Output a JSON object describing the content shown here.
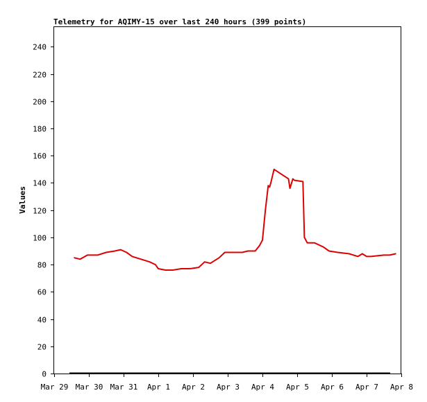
{
  "chart_data": {
    "type": "line",
    "title": "Telemetry for AQIMY-15 over last 240 hours (399 points)",
    "xlabel": "",
    "ylabel": "Values",
    "x_tick_labels": [
      "Mar 29",
      "Mar 30",
      "Mar 31",
      "Apr 1",
      "Apr 2",
      "Apr 3",
      "Apr 4",
      "Apr 5",
      "Apr 6",
      "Apr 7",
      "Apr 8"
    ],
    "xlim": [
      "Mar 29",
      "Apr 8"
    ],
    "ylim": [
      0,
      255
    ],
    "y_ticks": [
      0,
      20,
      40,
      60,
      80,
      100,
      120,
      140,
      160,
      180,
      200,
      220,
      240
    ],
    "grid": false,
    "line_color": "#dd0000",
    "baseline_color": "#000000",
    "series": [
      {
        "x": [
          "Mar 29 14:00",
          "Mar 29 18:00",
          "Mar 29 23:00",
          "Mar 30 06:00",
          "Mar 30 12:00",
          "Mar 30 18:00",
          "Mar 30 22:00",
          "Mar 31 02:00",
          "Mar 31 06:00",
          "Mar 31 12:00",
          "Mar 31 18:00",
          "Mar 31 22:00",
          "Apr 1 00:00",
          "Apr 1 05:00",
          "Apr 1 10:00",
          "Apr 1 16:00",
          "Apr 1 22:00",
          "Apr 2 04:00",
          "Apr 2 08:00",
          "Apr 2 12:00",
          "Apr 2 18:00",
          "Apr 2 22:00",
          "Apr 3 06:00",
          "Apr 3 10:00",
          "Apr 3 14:00",
          "Apr 3 19:00",
          "Apr 3 22:00",
          "Apr 4 00:00",
          "Apr 4 02:00",
          "Apr 4 04:00",
          "Apr 4 05:00",
          "Apr 4 06:00",
          "Apr 4 08:00",
          "Apr 4 18:00",
          "Apr 4 19:00",
          "Apr 4 21:00",
          "Apr 4 22:00",
          "Apr 5 04:00",
          "Apr 5 05:00",
          "Apr 5 07:00",
          "Apr 5 09:00",
          "Apr 5 12:00",
          "Apr 5 18:00",
          "Apr 5 22:00",
          "Apr 6 04:00",
          "Apr 6 12:00",
          "Apr 6 18:00",
          "Apr 6 21:00",
          "Apr 7 00:00",
          "Apr 7 03:00",
          "Apr 7 12:00",
          "Apr 7 16:00",
          "Apr 7 20:00"
        ],
        "values": [
          85,
          84,
          87,
          87,
          89,
          90,
          91,
          89,
          86,
          84,
          82,
          80,
          77,
          76,
          76,
          77,
          77,
          78,
          82,
          81,
          85,
          89,
          89,
          89,
          90,
          90,
          94,
          98,
          120,
          138,
          137,
          141,
          150,
          143,
          136,
          143,
          142,
          141,
          100,
          96,
          96,
          96,
          93,
          90,
          89,
          88,
          86,
          88,
          86,
          86,
          87,
          87,
          88
        ]
      }
    ]
  }
}
